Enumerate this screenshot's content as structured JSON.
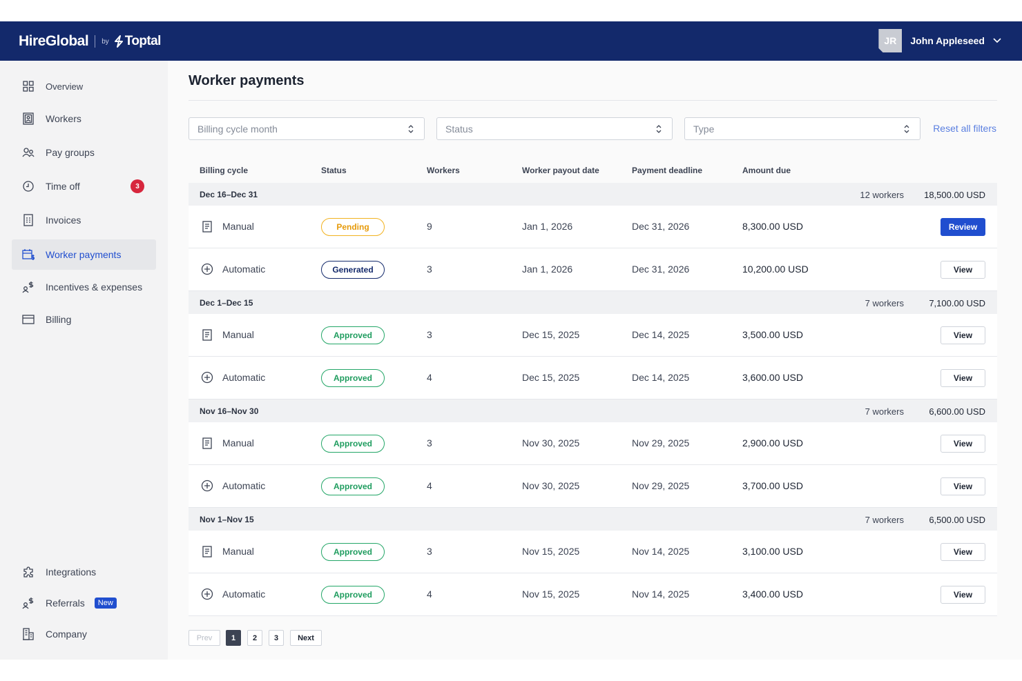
{
  "header": {
    "brand_name": "HireGlobal",
    "brand_by": "by",
    "brand_logo": "Toptal",
    "user_initials": "JR",
    "user_name": "John Appleseed"
  },
  "sidebar": {
    "items": [
      {
        "label": "Overview",
        "icon": "grid-icon"
      },
      {
        "label": "Workers",
        "icon": "id-card-icon"
      },
      {
        "label": "Pay groups",
        "icon": "users-icon"
      },
      {
        "label": "Time off",
        "icon": "clock-icon",
        "badge": "3"
      },
      {
        "label": "Invoices",
        "icon": "invoice-icon"
      },
      {
        "label": "Worker payments",
        "icon": "calendar-dollar-icon",
        "active": true
      },
      {
        "label": "Incentives & expenses",
        "icon": "person-dollar-icon"
      },
      {
        "label": "Billing",
        "icon": "credit-card-icon"
      }
    ],
    "bottom_items": [
      {
        "label": "Integrations",
        "icon": "puzzle-icon"
      },
      {
        "label": "Referrals",
        "icon": "person-dollar-icon",
        "badge": "New"
      },
      {
        "label": "Company",
        "icon": "building-icon"
      }
    ]
  },
  "main": {
    "title": "Worker payments",
    "filters": {
      "billing_cycle_placeholder": "Billing cycle month",
      "status_placeholder": "Status",
      "type_placeholder": "Type",
      "reset_label": "Reset all filters"
    },
    "columns": [
      "Billing cycle",
      "Status",
      "Workers",
      "Worker payout date",
      "Payment deadline",
      "Amount due"
    ],
    "groups": [
      {
        "name": "Dec 16–Dec 31",
        "workers": "12 workers",
        "total": "18,500.00 USD",
        "rows": [
          {
            "type": "Manual",
            "status": "Pending",
            "workers": "9",
            "payout": "Jan 1, 2026",
            "deadline": "Dec 31, 2026",
            "amount": "8,300.00 USD",
            "action": "Review"
          },
          {
            "type": "Automatic",
            "status": "Generated",
            "workers": "3",
            "payout": "Jan 1, 2026",
            "deadline": "Dec 31, 2026",
            "amount": "10,200.00 USD",
            "action": "View"
          }
        ]
      },
      {
        "name": "Dec 1–Dec 15",
        "workers": "7 workers",
        "total": "7,100.00 USD",
        "rows": [
          {
            "type": "Manual",
            "status": "Approved",
            "workers": "3",
            "payout": "Dec 15, 2025",
            "deadline": "Dec 14, 2025",
            "amount": "3,500.00 USD",
            "action": "View"
          },
          {
            "type": "Automatic",
            "status": "Approved",
            "workers": "4",
            "payout": "Dec 15, 2025",
            "deadline": "Dec 14, 2025",
            "amount": "3,600.00 USD",
            "action": "View"
          }
        ]
      },
      {
        "name": "Nov 16–Nov 30",
        "workers": "7 workers",
        "total": "6,600.00 USD",
        "rows": [
          {
            "type": "Manual",
            "status": "Approved",
            "workers": "3",
            "payout": "Nov 30, 2025",
            "deadline": "Nov 29, 2025",
            "amount": "2,900.00 USD",
            "action": "View"
          },
          {
            "type": "Automatic",
            "status": "Approved",
            "workers": "4",
            "payout": "Nov 30, 2025",
            "deadline": "Nov 29, 2025",
            "amount": "3,700.00 USD",
            "action": "View"
          }
        ]
      },
      {
        "name": "Nov 1–Nov 15",
        "workers": "7 workers",
        "total": "6,500.00 USD",
        "rows": [
          {
            "type": "Manual",
            "status": "Approved",
            "workers": "3",
            "payout": "Nov 15, 2025",
            "deadline": "Nov 14, 2025",
            "amount": "3,100.00 USD",
            "action": "View"
          },
          {
            "type": "Automatic",
            "status": "Approved",
            "workers": "4",
            "payout": "Nov 15, 2025",
            "deadline": "Nov 14, 2025",
            "amount": "3,400.00 USD",
            "action": "View"
          }
        ]
      }
    ],
    "pagination": {
      "prev": "Prev",
      "pages": [
        "1",
        "2",
        "3"
      ],
      "current": "1",
      "next": "Next"
    }
  },
  "colors": {
    "header_bg": "#13296b",
    "accent": "#204ecf",
    "pending": "#f2b21f",
    "approved": "#23a667",
    "badge_red": "#d7263d"
  }
}
